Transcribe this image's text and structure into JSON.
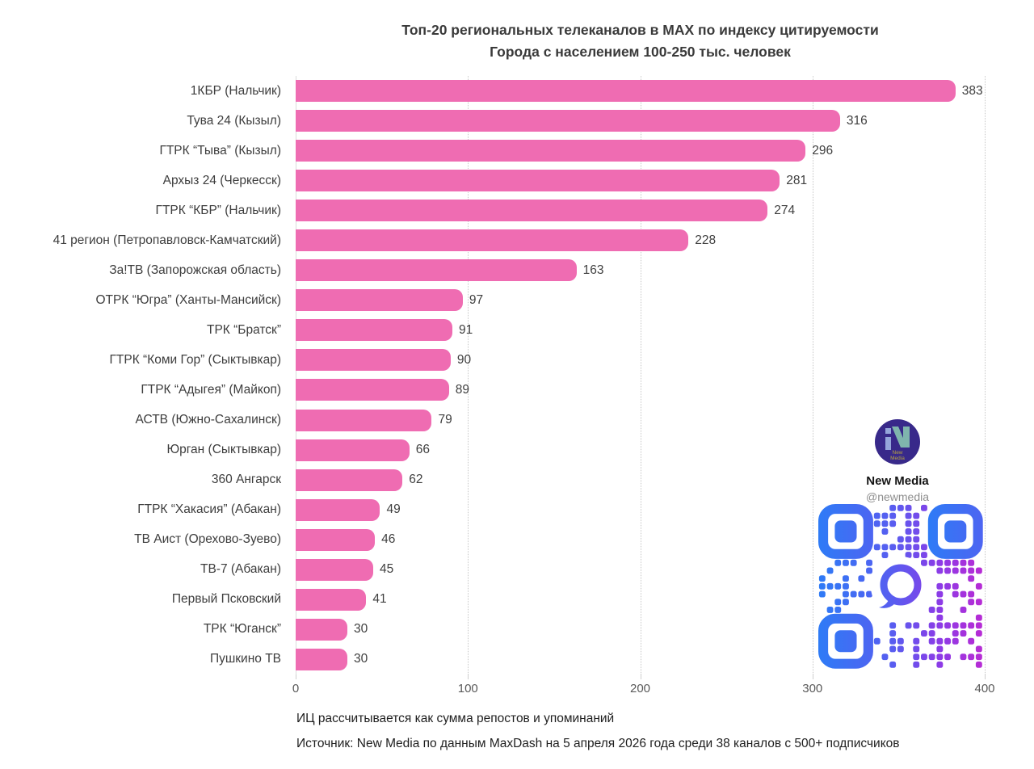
{
  "title": {
    "line1": "Топ-20 региональных телеканалов в MAX по индексу цитируемости",
    "line2": "Города с населением 100-250 тыс. человек"
  },
  "chart_data": {
    "type": "bar",
    "orientation": "horizontal",
    "title": "Топ-20 региональных телеканалов в MAX по индексу цитируемости — Города с населением 100-250 тыс. человек",
    "categories": [
      "1КБР (Нальчик)",
      "Тува 24 (Кызыл)",
      "ГТРК “Тыва” (Кызыл)",
      "Архыз 24 (Черкесск)",
      "ГТРК “КБР” (Нальчик)",
      "41 регион (Петропавловск-Камчатский)",
      "За!ТВ (Запорожская область)",
      "ОТРК “Югра” (Ханты-Мансийск)",
      "ТРК “Братск”",
      "ГТРК “Коми Гор” (Сыктывкар)",
      "ГТРК “Адыгея” (Майкоп)",
      "АСТВ (Южно-Сахалинск)",
      "Юрган (Сыктывкар)",
      "360 Ангарск",
      "ГТРК “Хакасия” (Абакан)",
      "ТВ Аист (Орехово-Зуево)",
      "ТВ-7 (Абакан)",
      "Первый Псковский",
      "ТРК “Юганск”",
      "Пушкино ТВ"
    ],
    "values": [
      383,
      316,
      296,
      281,
      274,
      228,
      163,
      97,
      91,
      90,
      89,
      79,
      66,
      62,
      49,
      46,
      45,
      41,
      30,
      30
    ],
    "xlim": [
      0,
      400
    ],
    "xticks": [
      0,
      100,
      200,
      300,
      400
    ],
    "bar_color": "#ef6cb2",
    "grid": "vertical-dotted",
    "value_labels": "outside-end"
  },
  "branding": {
    "name": "New Media",
    "handle": "@newmedia",
    "logo_line1": "New",
    "logo_line2": "Media"
  },
  "footnotes": {
    "line1": "ИЦ рассчитывается как сумма репостов и упоминаний",
    "line2": "Источник: New Media по данным MaxDash на 5 апреля 2026 года среди 38 каналов с 500+ подписчиков"
  }
}
